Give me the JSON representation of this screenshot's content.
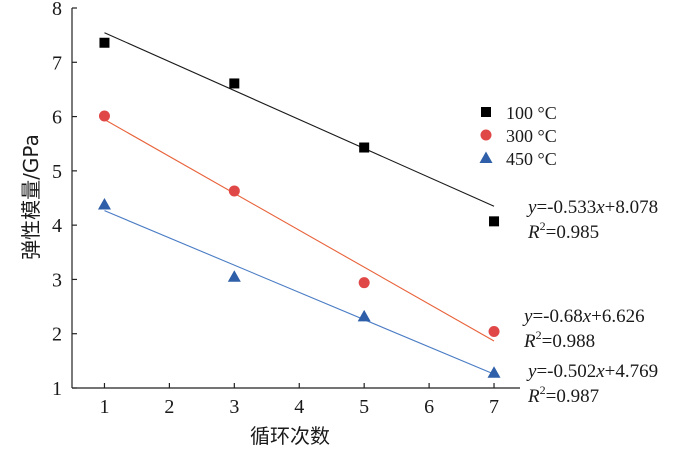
{
  "chart_data": {
    "type": "scatter",
    "xlabel": "循环次数",
    "ylabel": "弹性模量/GPa",
    "xlim": [
      0.5,
      7.4
    ],
    "ylim": [
      1,
      8
    ],
    "xticks": [
      1,
      2,
      3,
      4,
      5,
      6,
      7
    ],
    "yticks": [
      1,
      2,
      3,
      4,
      5,
      6,
      7,
      8
    ],
    "grid": false,
    "legend_position": "right-middle",
    "series": [
      {
        "name": "100 °C",
        "marker": "square",
        "color": "#000000",
        "line_color": "#1a1a1a",
        "x": [
          1,
          3,
          5,
          7
        ],
        "y": [
          7.36,
          6.61,
          5.43,
          4.07
        ],
        "fit": {
          "slope": -0.533,
          "intercept": 8.078
        },
        "eq_prefix": "y",
        "eq_mid": "=-0.533",
        "eq_var": "x",
        "eq_tail": "+8.078",
        "r2_sym": "R",
        "r2_sup": "2",
        "r2_val": "=0.985"
      },
      {
        "name": "300 °C",
        "marker": "circle",
        "color": "#e04848",
        "line_color": "#e8623a",
        "x": [
          1,
          3,
          5,
          7
        ],
        "y": [
          6.01,
          4.63,
          2.94,
          2.04
        ],
        "fit": {
          "slope": -0.68,
          "intercept": 6.626
        },
        "eq_prefix": "y",
        "eq_mid": "=-0.68",
        "eq_var": "x",
        "eq_tail": "+6.626",
        "r2_sym": "R",
        "r2_sup": "2",
        "r2_val": "=0.988"
      },
      {
        "name": "450 °C",
        "marker": "triangle",
        "color": "#2e5fa8",
        "line_color": "#4a7cc4",
        "x": [
          1,
          3,
          5,
          7
        ],
        "y": [
          4.38,
          3.05,
          2.32,
          1.28
        ],
        "fit": {
          "slope": -0.502,
          "intercept": 4.769
        },
        "eq_prefix": "y",
        "eq_mid": "=-0.502",
        "eq_var": "x",
        "eq_tail": "+4.769",
        "r2_sym": "R",
        "r2_sup": "2",
        "r2_val": "=0.987"
      }
    ]
  }
}
